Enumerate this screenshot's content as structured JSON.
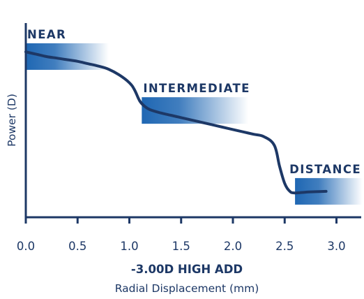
{
  "chart_data": {
    "type": "line",
    "title": "-3.00D HIGH ADD",
    "xlabel": "Radial Displacement (mm)",
    "ylabel": "Power (D)",
    "xlim": [
      0,
      3.2
    ],
    "ylim": [
      0,
      100
    ],
    "x_ticks": [
      "0.0",
      "0.5",
      "1.0",
      "1.5",
      "2.0",
      "2.5",
      "3.0"
    ],
    "y_ticks_labeled": false,
    "grid": false,
    "series": [
      {
        "points": [
          [
            0.0,
            92
          ],
          [
            0.1,
            90.5
          ],
          [
            0.2,
            89
          ],
          [
            0.3,
            88
          ],
          [
            0.4,
            87
          ],
          [
            0.5,
            86
          ],
          [
            0.6,
            84.5
          ],
          [
            0.7,
            83
          ],
          [
            0.8,
            81
          ],
          [
            0.9,
            77.5
          ],
          [
            1.0,
            72.5
          ],
          [
            1.05,
            68
          ],
          [
            1.1,
            61
          ],
          [
            1.15,
            57.5
          ],
          [
            1.2,
            55.5
          ],
          [
            1.3,
            53.5
          ],
          [
            1.4,
            52
          ],
          [
            1.5,
            50.5
          ],
          [
            1.6,
            49
          ],
          [
            1.7,
            47.5
          ],
          [
            1.8,
            46
          ],
          [
            1.9,
            44.5
          ],
          [
            2.0,
            43
          ],
          [
            2.1,
            41.5
          ],
          [
            2.2,
            40
          ],
          [
            2.3,
            38.5
          ],
          [
            2.4,
            33
          ],
          [
            2.45,
            20
          ],
          [
            2.5,
            9
          ],
          [
            2.55,
            4
          ],
          [
            2.6,
            3
          ],
          [
            2.7,
            3.5
          ],
          [
            2.8,
            3.8
          ],
          [
            2.9,
            4
          ]
        ]
      }
    ],
    "zones": [
      {
        "label": "NEAR",
        "x0": 0.0,
        "x1": 0.8,
        "y": 89
      },
      {
        "label": "INTERMEDIATE",
        "x0": 1.12,
        "x1": 2.15,
        "y": 55
      },
      {
        "label": "DISTANCE",
        "x0": 2.6,
        "x1": 3.25,
        "y": 4
      }
    ],
    "colors": {
      "line": "#1d3866",
      "axis": "#1d3866",
      "band": "#1f67b3",
      "text": "#1d3866"
    }
  }
}
